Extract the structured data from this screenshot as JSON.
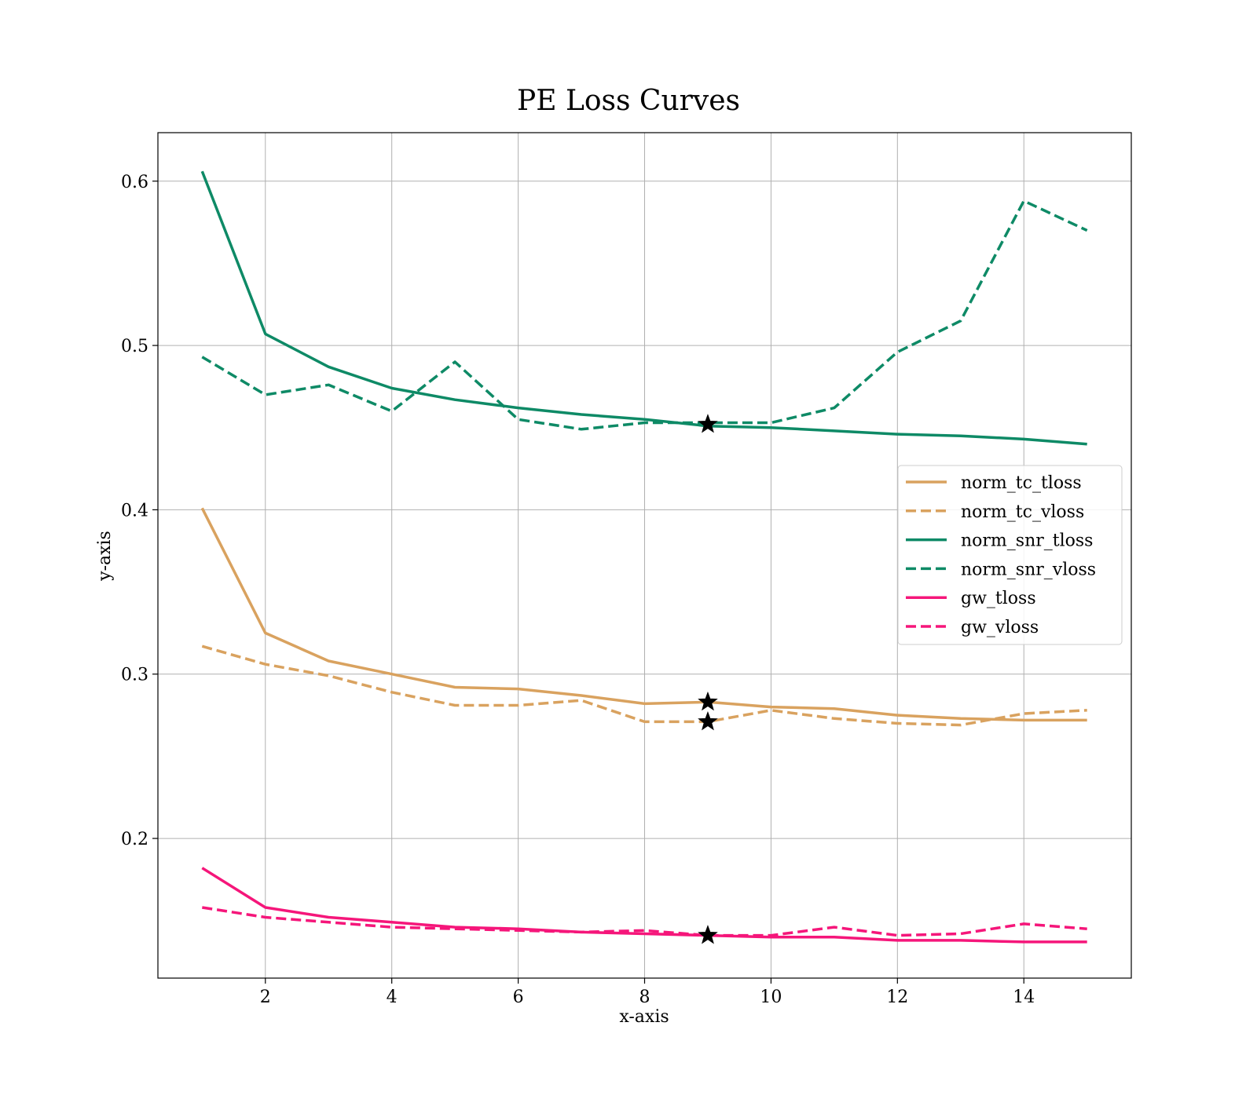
{
  "chart_data": {
    "type": "line",
    "title": "PE Loss Curves",
    "xlabel": "x-axis",
    "ylabel": "y-axis",
    "xlim": [
      0.3,
      15.7
    ],
    "ylim": [
      0.115,
      0.6295
    ],
    "xticks": [
      2,
      4,
      6,
      8,
      10,
      12,
      14
    ],
    "xtick_labels": [
      "2",
      "4",
      "6",
      "8",
      "10",
      "12",
      "14"
    ],
    "yticks": [
      0.2,
      0.3,
      0.4,
      0.5,
      0.6
    ],
    "ytick_labels": [
      "0.2",
      "0.3",
      "0.4",
      "0.5",
      "0.6"
    ],
    "grid": true,
    "legend_position": "center-right",
    "x": [
      1,
      2,
      3,
      4,
      5,
      6,
      7,
      8,
      9,
      10,
      11,
      12,
      13,
      14,
      15
    ],
    "series": [
      {
        "name": "norm_tc_tloss",
        "color": "#d9a25f",
        "style": "solid",
        "values": [
          0.401,
          0.325,
          0.308,
          0.3,
          0.292,
          0.291,
          0.287,
          0.282,
          0.283,
          0.28,
          0.279,
          0.275,
          0.273,
          0.272,
          0.272
        ]
      },
      {
        "name": "norm_tc_vloss",
        "color": "#d9a25f",
        "style": "dashed",
        "values": [
          0.317,
          0.306,
          0.299,
          0.289,
          0.281,
          0.281,
          0.284,
          0.271,
          0.271,
          0.278,
          0.273,
          0.27,
          0.269,
          0.276,
          0.278
        ]
      },
      {
        "name": "norm_snr_tloss",
        "color": "#0e8a66",
        "style": "solid",
        "values": [
          0.606,
          0.507,
          0.487,
          0.474,
          0.467,
          0.462,
          0.458,
          0.455,
          0.451,
          0.45,
          0.448,
          0.446,
          0.445,
          0.443,
          0.44
        ]
      },
      {
        "name": "norm_snr_vloss",
        "color": "#0e8a66",
        "style": "dashed",
        "values": [
          0.493,
          0.47,
          0.476,
          0.46,
          0.49,
          0.455,
          0.449,
          0.453,
          0.453,
          0.453,
          0.462,
          0.496,
          0.515,
          0.588,
          0.57
        ]
      },
      {
        "name": "gw_tloss",
        "color": "#f5167a",
        "style": "solid",
        "values": [
          0.182,
          0.158,
          0.152,
          0.149,
          0.146,
          0.145,
          0.143,
          0.142,
          0.141,
          0.14,
          0.14,
          0.138,
          0.138,
          0.137,
          0.137
        ]
      },
      {
        "name": "gw_vloss",
        "color": "#f5167a",
        "style": "dashed",
        "values": [
          0.158,
          0.152,
          0.149,
          0.146,
          0.145,
          0.144,
          0.143,
          0.144,
          0.141,
          0.141,
          0.146,
          0.141,
          0.142,
          0.148,
          0.145
        ]
      }
    ],
    "markers": [
      {
        "symbol": "star",
        "x": 9,
        "y": 0.452,
        "color": "#000000"
      },
      {
        "symbol": "star",
        "x": 9,
        "y": 0.283,
        "color": "#000000"
      },
      {
        "symbol": "star",
        "x": 9,
        "y": 0.271,
        "color": "#000000"
      },
      {
        "symbol": "star",
        "x": 9,
        "y": 0.141,
        "color": "#000000"
      }
    ]
  }
}
